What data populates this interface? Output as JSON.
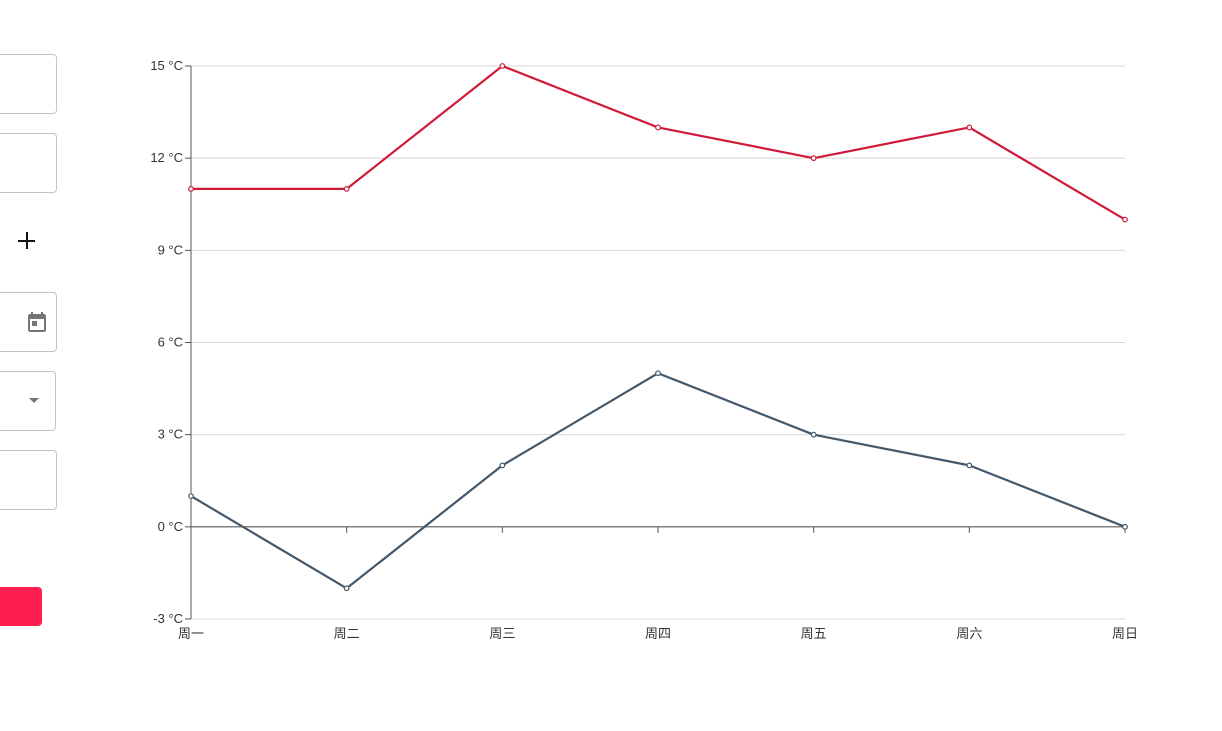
{
  "form": {
    "fields": [
      {
        "id": "field-1",
        "value": ""
      },
      {
        "id": "field-2",
        "value": ""
      },
      {
        "id": "date-field",
        "value": "",
        "icon": "calendar-icon"
      },
      {
        "id": "select-field",
        "value": "",
        "icon": "dropdown-arrow-icon"
      },
      {
        "id": "field-6",
        "value": ""
      }
    ],
    "add_icon": "plus-icon",
    "submit_color": "#ff1f4f"
  },
  "chart_data": {
    "type": "line",
    "categories": [
      "周一",
      "周二",
      "周三",
      "周四",
      "周五",
      "周六",
      "周日"
    ],
    "series": [
      {
        "values": [
          11,
          11,
          15,
          13,
          12,
          13,
          10
        ],
        "color": "#d11a3a"
      },
      {
        "values": [
          1,
          -2,
          2,
          5,
          3,
          2,
          0
        ],
        "color": "#44586a"
      }
    ],
    "ylim": [
      -3,
      15
    ],
    "yticks": [
      15,
      12,
      9,
      6,
      3,
      0,
      -3
    ],
    "ytick_labels": [
      "15 °C",
      "12 °C",
      "9 °C",
      "6 °C",
      "3 °C",
      "0 °C",
      "-3 °C"
    ],
    "grid": true,
    "legend": false
  }
}
